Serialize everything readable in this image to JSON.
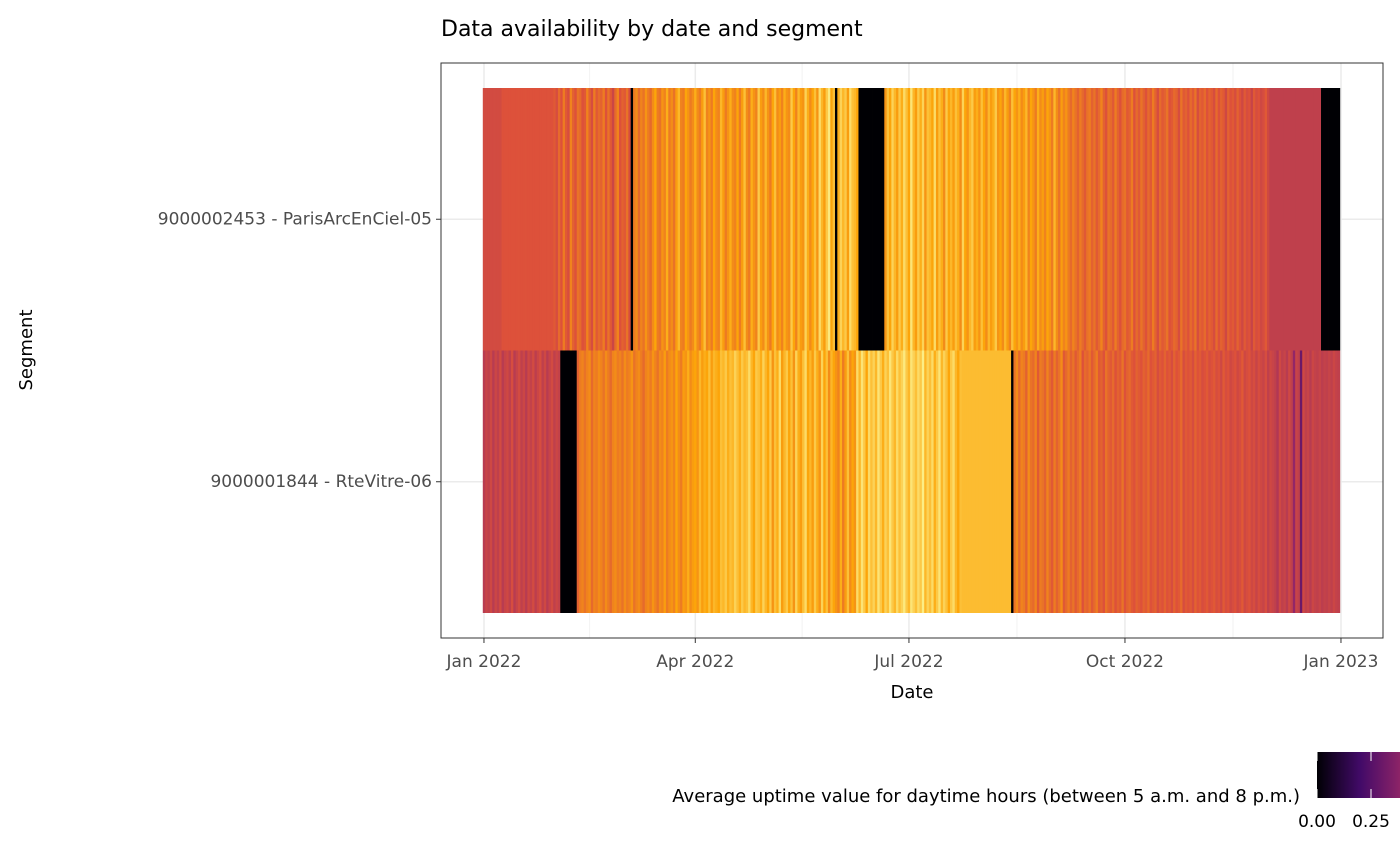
{
  "chart_data": {
    "type": "heatmap",
    "title": "Data availability by date and segment",
    "xlabel": "Date",
    "ylabel": "Segment",
    "colorbar_title": "Average uptime value for daytime hours (between 5 a.m. and 8 p.m.)",
    "colorscale": [
      "#000004",
      "#420a68",
      "#932667",
      "#dd513a",
      "#fca50a",
      "#fcffa4"
    ],
    "zlim": [
      0,
      1
    ],
    "colorbar_ticks": [
      {
        "value": 0,
        "label": "0.00"
      },
      {
        "value": 0.25,
        "label": "0.25"
      }
    ],
    "xlim": [
      -18.3,
      382.9
    ],
    "xticks": [
      {
        "value": 0,
        "label": "Jan 2022"
      },
      {
        "value": 90,
        "label": "Apr 2022"
      },
      {
        "value": 181,
        "label": "Jul 2022"
      },
      {
        "value": 273,
        "label": "Oct 2022"
      },
      {
        "value": 365,
        "label": "Jan 2023"
      }
    ],
    "grid": true,
    "y": [
      "9000002453 - ParisArcEnCiel-05",
      "9000001844 - RteVitre-06"
    ],
    "x": [
      0,
      1,
      2,
      3,
      4,
      5,
      6,
      7,
      8,
      9,
      10,
      11,
      12,
      13,
      14,
      15,
      16,
      17,
      18,
      19,
      20,
      21,
      22,
      23,
      24,
      25,
      26,
      27,
      28,
      29,
      30,
      31,
      32,
      33,
      34,
      35,
      36,
      37,
      38,
      39,
      40,
      41,
      42,
      43,
      44,
      45,
      46,
      47,
      48,
      49,
      50,
      51,
      52,
      53,
      54,
      55,
      56,
      57,
      58,
      59,
      60,
      61,
      62,
      63,
      64,
      65,
      66,
      67,
      68,
      69,
      70,
      71,
      72,
      73,
      74,
      75,
      76,
      77,
      78,
      79,
      80,
      81,
      82,
      83,
      84,
      85,
      86,
      87,
      88,
      89,
      90,
      91,
      92,
      93,
      94,
      95,
      96,
      97,
      98,
      99,
      100,
      101,
      102,
      103,
      104,
      105,
      106,
      107,
      108,
      109,
      110,
      111,
      112,
      113,
      114,
      115,
      116,
      117,
      118,
      119,
      120,
      121,
      122,
      123,
      124,
      125,
      126,
      127,
      128,
      129,
      130,
      131,
      132,
      133,
      134,
      135,
      136,
      137,
      138,
      139,
      140,
      141,
      142,
      143,
      144,
      145,
      146,
      147,
      148,
      149,
      150,
      151,
      152,
      153,
      154,
      155,
      156,
      157,
      158,
      159,
      160,
      161,
      162,
      163,
      164,
      165,
      166,
      167,
      168,
      169,
      170,
      171,
      172,
      173,
      174,
      175,
      176,
      177,
      178,
      179,
      180,
      181,
      182,
      183,
      184,
      185,
      186,
      187,
      188,
      189,
      190,
      191,
      192,
      193,
      194,
      195,
      196,
      197,
      198,
      199,
      200,
      201,
      202,
      203,
      204,
      205,
      206,
      207,
      208,
      209,
      210,
      211,
      212,
      213,
      214,
      215,
      216,
      217,
      218,
      219,
      220,
      221,
      222,
      223,
      224,
      225,
      226,
      227,
      228,
      229,
      230,
      231,
      232,
      233,
      234,
      235,
      236,
      237,
      238,
      239,
      240,
      241,
      242,
      243,
      244,
      245,
      246,
      247,
      248,
      249,
      250,
      251,
      252,
      253,
      254,
      255,
      256,
      257,
      258,
      259,
      260,
      261,
      262,
      263,
      264,
      265,
      266,
      267,
      268,
      269,
      270,
      271,
      272,
      273,
      274,
      275,
      276,
      277,
      278,
      279,
      280,
      281,
      282,
      283,
      284,
      285,
      286,
      287,
      288,
      289,
      290,
      291,
      292,
      293,
      294,
      295,
      296,
      297,
      298,
      299,
      300,
      301,
      302,
      303,
      304,
      305,
      306,
      307,
      308,
      309,
      310,
      311,
      312,
      313,
      314,
      315,
      316,
      317,
      318,
      319,
      320,
      321,
      322,
      323,
      324,
      325,
      326,
      327,
      328,
      329,
      330,
      331,
      332,
      333,
      334,
      335,
      336,
      337,
      338,
      339,
      340,
      341,
      342,
      343,
      344,
      345,
      346,
      347,
      348,
      349,
      350,
      351,
      352,
      353,
      354,
      355,
      356,
      357,
      358,
      359,
      360,
      361,
      362,
      363,
      364
    ],
    "z": [
      [
        0.57,
        0.57,
        0.57,
        0.57,
        0.57,
        0.57,
        0.57,
        0.57,
        0.6,
        0.6,
        0.6,
        0.6,
        0.6,
        0.6,
        0.6,
        0.6,
        0.6,
        0.6,
        0.6,
        0.6,
        0.6,
        0.6,
        0.6,
        0.6,
        0.6,
        0.6,
        0.6,
        0.6,
        0.6,
        0.6,
        0.62,
        0.58,
        0.66,
        0.6,
        0.7,
        0.62,
        0.58,
        0.72,
        0.64,
        0.6,
        0.68,
        0.66,
        0.6,
        0.62,
        0.72,
        0.64,
        0.58,
        0.7,
        0.62,
        0.66,
        0.64,
        0.7,
        0.6,
        0.68,
        0.62,
        0.55,
        0.66,
        0.72,
        0.6,
        0.64,
        0.62,
        0.68,
        0.58,
        0,
        0.7,
        0.74,
        0.66,
        0.72,
        0.68,
        0.76,
        0.7,
        0.66,
        0.74,
        0.8,
        0.7,
        0.68,
        0.76,
        0.72,
        0.82,
        0.7,
        0.74,
        0.68,
        0.78,
        0.84,
        0.72,
        0.7,
        0.8,
        0.76,
        0.7,
        0.74,
        0.82,
        0.74,
        0.7,
        0.78,
        0.86,
        0.72,
        0.76,
        0.7,
        0.8,
        0.74,
        0.72,
        0.84,
        0.78,
        0.7,
        0.76,
        0.82,
        0.74,
        0.72,
        0.8,
        0.7,
        0.78,
        0.86,
        0.74,
        0.7,
        0.82,
        0.76,
        0.72,
        0.88,
        0.78,
        0.74,
        0.84,
        0.76,
        0.7,
        0.8,
        0.86,
        0.74,
        0.78,
        0.72,
        0.82,
        0.76,
        0.74,
        0.88,
        0.8,
        0.72,
        0.84,
        0.78,
        0.76,
        0.9,
        0.82,
        0.74,
        0.8,
        0.86,
        0.76,
        0.92,
        0.84,
        0.78,
        0.88,
        0.95,
        0.8,
        0.86,
        0,
        0.82,
        0.9,
        0.84,
        0.88,
        0.78,
        0.92,
        0.86,
        0.84,
        0.8,
        0,
        0,
        0,
        0,
        0,
        0,
        0,
        0,
        0,
        0,
        0,
        0.76,
        0.86,
        0.8,
        0.9,
        0.84,
        0.78,
        0.88,
        0.82,
        0.92,
        0.86,
        0.8,
        0.94,
        0.84,
        0.78,
        0.88,
        0.82,
        0.9,
        0.76,
        0.86,
        0.84,
        0.8,
        0.92,
        0.78,
        0.86,
        0.82,
        0.74,
        0.88,
        0.8,
        0.84,
        0.78,
        0.86,
        0.82,
        0.74,
        0.9,
        0.8,
        0.76,
        0.84,
        0.88,
        0.78,
        0.82,
        0.76,
        0.86,
        0.8,
        0.74,
        0.84,
        0.78,
        0.82,
        0.88,
        0.76,
        0.8,
        0.74,
        0.84,
        0.78,
        0.72,
        0.86,
        0.8,
        0.76,
        0.82,
        0.74,
        0.78,
        0.84,
        0.72,
        0.8,
        0.76,
        0.7,
        0.82,
        0.74,
        0.78,
        0.72,
        0.8,
        0.76,
        0.7,
        0.84,
        0.74,
        0.68,
        0.78,
        0.72,
        0.76,
        0.7,
        0.66,
        0.72,
        0.68,
        0.64,
        0.7,
        0.66,
        0.62,
        0.68,
        0.7,
        0.64,
        0.68,
        0.62,
        0.66,
        0.72,
        0.64,
        0.6,
        0.68,
        0.66,
        0.62,
        0.7,
        0.64,
        0.6,
        0.66,
        0.68,
        0.62,
        0.64,
        0.7,
        0.6,
        0.66,
        0.62,
        0.68,
        0.64,
        0.6,
        0.66,
        0.62,
        0.7,
        0.64,
        0.58,
        0.66,
        0.62,
        0.64,
        0.68,
        0.6,
        0.62,
        0.66,
        0.64,
        0.58,
        0.68,
        0.62,
        0.64,
        0.6,
        0.66,
        0.62,
        0.68,
        0.58,
        0.64,
        0.62,
        0.66,
        0.6,
        0.64,
        0.62,
        0.58,
        0.66,
        0.6,
        0.64,
        0.62,
        0.56,
        0.64,
        0.6,
        0.62,
        0.58,
        0.64,
        0.6,
        0.56,
        0.62,
        0.58,
        0.6,
        0.54,
        0.62,
        0.58,
        0.6,
        0.56,
        0.58,
        0.62,
        0.56,
        0.52,
        0.52,
        0.52,
        0.52,
        0.52,
        0.52,
        0.52,
        0.52,
        0.52,
        0.52,
        0.52,
        0.52,
        0.52,
        0.52,
        0.52,
        0.52,
        0.52,
        0.52,
        0.52,
        0.52,
        0.52,
        0.52,
        0,
        0,
        0,
        0,
        0,
        0,
        0,
        0
      ],
      [
        0.5,
        0.54,
        0.52,
        0.56,
        0.5,
        0.55,
        0.52,
        0.57,
        0.5,
        0.54,
        0.56,
        0.52,
        0.58,
        0.5,
        0.54,
        0.57,
        0.52,
        0.55,
        0.5,
        0.56,
        0.53,
        0.57,
        0.51,
        0.55,
        0.58,
        0.52,
        0.56,
        0.5,
        0.54,
        0.57,
        0.52,
        0.55,
        0.53,
        0,
        0,
        0,
        0,
        0,
        0,
        0,
        0.64,
        0.7,
        0.72,
        0.68,
        0.72,
        0.74,
        0.66,
        0.72,
        0.7,
        0.74,
        0.72,
        0.68,
        0.74,
        0.7,
        0.66,
        0.72,
        0.74,
        0.7,
        0.72,
        0.68,
        0.74,
        0.7,
        0.72,
        0.76,
        0.68,
        0.72,
        0.74,
        0.7,
        0.66,
        0.72,
        0.74,
        0.7,
        0.76,
        0.72,
        0.68,
        0.74,
        0.72,
        0.78,
        0.7,
        0.74,
        0.76,
        0.72,
        0.8,
        0.74,
        0.7,
        0.78,
        0.76,
        0.82,
        0.74,
        0.78,
        0.8,
        0.76,
        0.84,
        0.78,
        0.82,
        0.8,
        0.86,
        0.78,
        0.84,
        0.82,
        0.8,
        0.86,
        0.84,
        0.88,
        0.82,
        0.86,
        0.84,
        0.9,
        0.86,
        0.82,
        0.88,
        0.84,
        0.86,
        0.92,
        0.84,
        0.8,
        0.88,
        0.86,
        0.82,
        0.9,
        0.84,
        0.8,
        0.88,
        0.76,
        0.86,
        0.82,
        0.92,
        0.78,
        0.84,
        0.88,
        0.8,
        0.86,
        0.76,
        0.9,
        0.82,
        0.78,
        0.86,
        0.92,
        0.8,
        0.84,
        0.78,
        0.88,
        0.82,
        0.76,
        0.9,
        0.8,
        0.86,
        0.74,
        0.84,
        0.8,
        0.76,
        0.72,
        0.82,
        0.7,
        0.78,
        0.86,
        0.74,
        0.8,
        0.76,
        0.92,
        0.84,
        0.94,
        0.88,
        0.8,
        0.92,
        0.86,
        0.9,
        0.84,
        0.94,
        0.88,
        0.82,
        0.9,
        0.86,
        0.94,
        0.88,
        0.84,
        0.92,
        0.86,
        0.9,
        0.95,
        0.88,
        0.84,
        0.94,
        0.9,
        0.86,
        0.92,
        0.88,
        0.96,
        0.84,
        0.9,
        0.86,
        0.92,
        0.82,
        0.88,
        0.94,
        0.84,
        0.9,
        0.86,
        0.8,
        0.88,
        0.92,
        0.84,
        0.8,
        0.86,
        0.85,
        0.85,
        0.85,
        0.85,
        0.85,
        0.85,
        0.85,
        0.85,
        0.85,
        0.85,
        0.85,
        0.85,
        0.85,
        0.85,
        0.85,
        0.85,
        0.85,
        0.85,
        0.85,
        0.85,
        0.85,
        0,
        0.68,
        0.74,
        0.66,
        0.72,
        0.7,
        0.64,
        0.74,
        0.68,
        0.66,
        0.72,
        0.62,
        0.7,
        0.68,
        0.64,
        0.72,
        0.66,
        0.62,
        0.7,
        0.64,
        0.68,
        0.74,
        0.62,
        0.66,
        0.7,
        0.64,
        0.68,
        0.62,
        0.66,
        0.7,
        0.6,
        0.66,
        0.64,
        0.68,
        0.62,
        0.66,
        0.7,
        0.62,
        0.64,
        0.6,
        0.68,
        0.64,
        0.62,
        0.66,
        0.6,
        0.64,
        0.62,
        0.68,
        0.6,
        0.64,
        0.66,
        0.62,
        0.6,
        0.64,
        0.62,
        0.6,
        0.64,
        0.62,
        0.66,
        0.6,
        0.62,
        0.64,
        0.58,
        0.62,
        0.6,
        0.64,
        0.6,
        0.62,
        0.58,
        0.64,
        0.6,
        0.62,
        0.66,
        0.58,
        0.62,
        0.6,
        0.62,
        0.58,
        0.64,
        0.6,
        0.62,
        0.58,
        0.6,
        0.62,
        0.58,
        0.6,
        0.62,
        0.58,
        0.6,
        0.56,
        0.62,
        0.58,
        0.6,
        0.56,
        0.58,
        0.6,
        0.56,
        0.58,
        0.62,
        0.56,
        0.58,
        0.6,
        0.56,
        0.58,
        0.54,
        0.58,
        0.56,
        0.54,
        0.58,
        0.52,
        0.56,
        0.54,
        0.52,
        0.48,
        0.56,
        0.52,
        0.54,
        0.5,
        0.56,
        0.52,
        0.4,
        0.54,
        0.52,
        0.3,
        0.56,
        0.52,
        0.54,
        0.5,
        0.55,
        0.53,
        0.52,
        0.54,
        0.51,
        0.53,
        0.52,
        0.54,
        0.52,
        0.55,
        0.53,
        0.52
      ]
    ]
  }
}
